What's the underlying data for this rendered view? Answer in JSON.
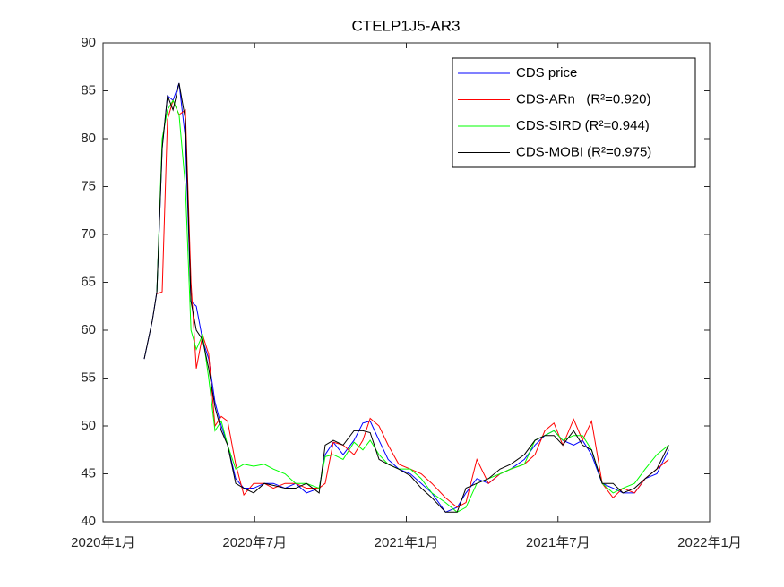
{
  "chart_data": {
    "type": "line",
    "title": "CTELP1J5-AR3",
    "x": [
      1.63,
      1.95,
      2.13,
      2.34,
      2.55,
      2.77,
      3.01,
      3.26,
      3.48,
      3.69,
      3.94,
      4.18,
      4.43,
      4.68,
      4.93,
      5.25,
      5.57,
      5.96,
      6.38,
      6.74,
      7.2,
      7.62,
      8.05,
      8.55,
      8.79,
      9.11,
      9.5,
      9.93,
      10.28,
      10.57,
      10.92,
      11.28,
      11.7,
      12.16,
      12.59,
      13.01,
      13.55,
      14.01,
      14.36,
      14.79,
      15.25,
      15.71,
      16.13,
      16.67,
      17.09,
      17.48,
      17.84,
      18.19,
      18.62,
      18.97,
      19.33,
      19.75,
      20.18,
      20.57,
      21.03,
      21.45,
      21.91,
      22.38
    ],
    "series": [
      {
        "name": "CDS price",
        "color": "#0000ff",
        "values": [
          57,
          61,
          64,
          79,
          84.5,
          84,
          85.8,
          80,
          63,
          62.5,
          59,
          57,
          52.5,
          50,
          48,
          44.5,
          43.5,
          43.5,
          44,
          44,
          43.5,
          44,
          43,
          43.5,
          47,
          48.3,
          47,
          48.5,
          50.3,
          50.5,
          48.5,
          46.5,
          45.5,
          45,
          44,
          43,
          41,
          41.5,
          43,
          44.5,
          44,
          45,
          45.5,
          46.5,
          48,
          49,
          49.5,
          48.5,
          48,
          48.5,
          47,
          44,
          43.5,
          43,
          43,
          44.5,
          45,
          47.5
        ]
      },
      {
        "name": "CDS-ARn   (R²=0.920)",
        "color": "#ff0000",
        "values": [
          null,
          null,
          63.8,
          64,
          82,
          84,
          82.5,
          83,
          65,
          56,
          59.5,
          57.5,
          50,
          51,
          50.5,
          46,
          42.8,
          44,
          44,
          43.5,
          44,
          44,
          43.5,
          43.5,
          44,
          48.3,
          48,
          47,
          48.5,
          50.8,
          50,
          48,
          46,
          45.5,
          45,
          44,
          42.5,
          41.5,
          42,
          46.5,
          44,
          45,
          45.5,
          46,
          47,
          49.5,
          50.3,
          48,
          50.7,
          48.5,
          50.5,
          44,
          42.5,
          43.5,
          43,
          44.5,
          45.5,
          46.5
        ]
      },
      {
        "name": "CDS-SIRD (R²=0.944)",
        "color": "#00ff00",
        "values": [
          null,
          null,
          64,
          80,
          83,
          84,
          82.5,
          75,
          60,
          58,
          59.5,
          55,
          49.5,
          50.5,
          48,
          45.5,
          46,
          45.8,
          46,
          45.5,
          45,
          44,
          44,
          43.5,
          46.8,
          47,
          46.5,
          48.3,
          47.5,
          48.5,
          47,
          46,
          45.5,
          45.5,
          44.5,
          43,
          42,
          41,
          41.5,
          44,
          44.5,
          45,
          45.5,
          46,
          48.5,
          49,
          49.5,
          48.5,
          49,
          49,
          47.5,
          44,
          43,
          43.5,
          44,
          45.5,
          47,
          48
        ]
      },
      {
        "name": "CDS-MOBI (R²=0.975)",
        "color": "#000000",
        "values": [
          57,
          61,
          64,
          79,
          84.5,
          83,
          85.8,
          82,
          63,
          60,
          59,
          56,
          52,
          49.5,
          48,
          44,
          43.5,
          43,
          44,
          43.8,
          43.5,
          43.5,
          44,
          43,
          48,
          48.5,
          48,
          49.5,
          49.5,
          49.3,
          46.5,
          46,
          45.5,
          44.8,
          43.5,
          42.5,
          41,
          41,
          43.5,
          44,
          44.5,
          45.5,
          46,
          47,
          48.5,
          49,
          49,
          48,
          49.5,
          48,
          47.5,
          44,
          44,
          43,
          43.5,
          44.5,
          45.5,
          48
        ]
      }
    ],
    "xlim": [
      0,
      24
    ],
    "xticks": [
      {
        "value": 0,
        "label": "2020年1月"
      },
      {
        "value": 6,
        "label": "2020年7月"
      },
      {
        "value": 12,
        "label": "2021年1月"
      },
      {
        "value": 18,
        "label": "2021年7月"
      },
      {
        "value": 24,
        "label": "2022年1月"
      }
    ],
    "ylim": [
      40,
      90
    ],
    "yticks": [
      40,
      45,
      50,
      55,
      60,
      65,
      70,
      75,
      80,
      85,
      90
    ],
    "grid": false,
    "legend": "northeast"
  }
}
